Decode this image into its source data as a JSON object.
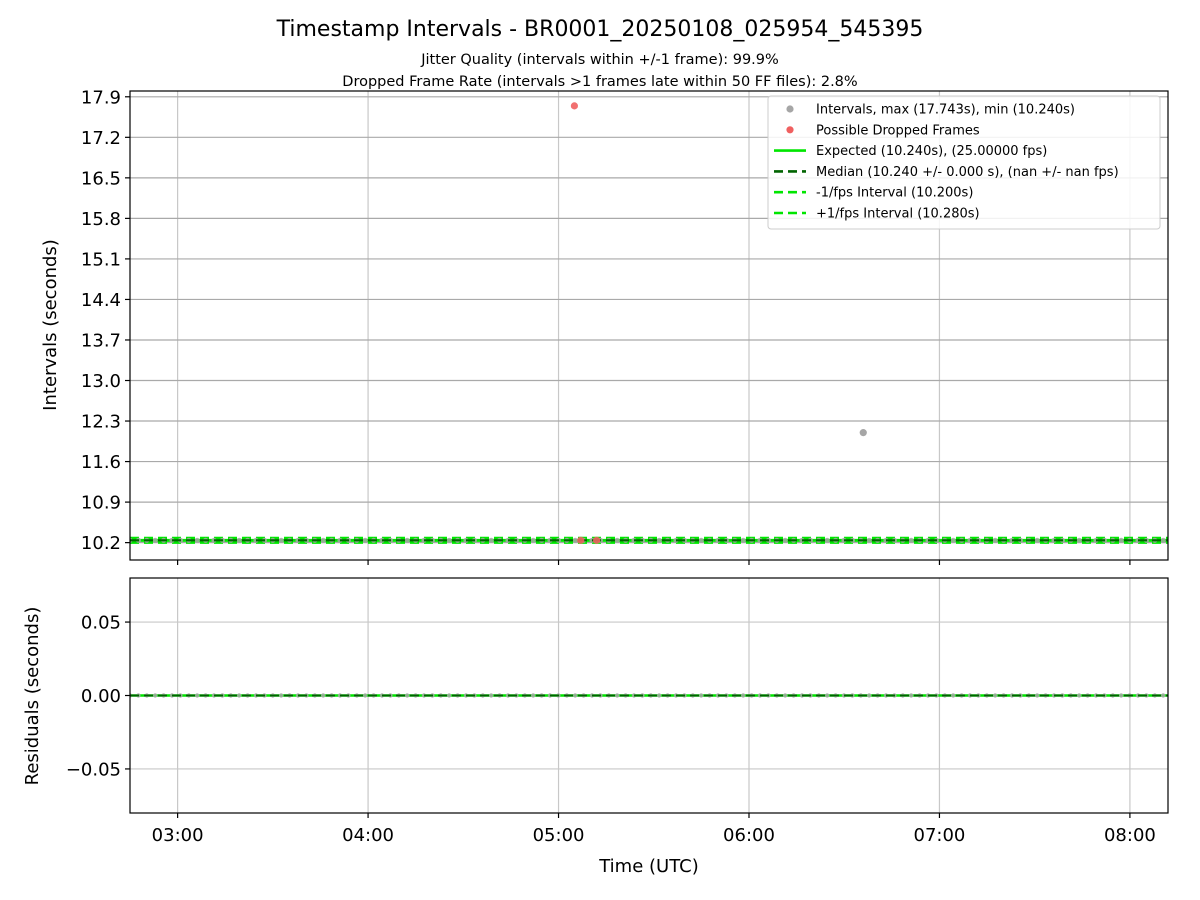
{
  "figure": {
    "title": "Timestamp Intervals - BR0001_20250108_025954_545395",
    "subtitle_lines": [
      "Jitter Quality (intervals within +/-1 frame): 99.9%",
      "Dropped Frame Rate (intervals >1 frames late within 50 FF files): 2.8%"
    ]
  },
  "chart_data": [
    {
      "type": "scatter",
      "panel": "intervals",
      "xlabel": "",
      "ylabel": "Intervals (seconds)",
      "xlim": [
        "02:45",
        "08:12"
      ],
      "ylim": [
        9.9,
        18.0
      ],
      "yticks": [
        "10.2",
        "10.9",
        "11.6",
        "12.3",
        "13.0",
        "13.7",
        "14.4",
        "15.1",
        "15.8",
        "16.5",
        "17.2",
        "17.9"
      ],
      "xticks": [
        "03:00",
        "04:00",
        "05:00",
        "06:00",
        "07:00",
        "08:00"
      ],
      "grid": true,
      "legend": {
        "placement": "top-right",
        "entries": [
          {
            "label": "Intervals, max (17.743s), min (10.240s)",
            "marker": "dot",
            "color": "#a6a6a6"
          },
          {
            "label": "Possible Dropped Frames",
            "marker": "dot",
            "color": "#f06060"
          },
          {
            "label": "Expected (10.240s), (25.00000 fps)",
            "marker": "line",
            "color": "#00e600"
          },
          {
            "label": "Median (10.240 +/- 0.000 s), (nan +/- nan fps)",
            "marker": "dash",
            "color": "#006400"
          },
          {
            "label": "-1/fps Interval (10.200s)",
            "marker": "dash",
            "color": "#00e600"
          },
          {
            "label": "+1/fps Interval (10.280s)",
            "marker": "dash",
            "color": "#00e600"
          }
        ]
      },
      "series": [
        {
          "name": "Intervals, max (17.743s), min (10.240s)",
          "color": "#a6a6a6",
          "x_start": "02:45",
          "x_end": "08:12",
          "step_seconds": 10.24,
          "baseline_value": 10.24,
          "outliers": [
            {
              "x": "06:36",
              "y": 12.1
            }
          ]
        },
        {
          "name": "Possible Dropped Frames",
          "color": "#f06060",
          "points": [
            {
              "x": "05:05",
              "y": 17.743
            },
            {
              "x": "05:07",
              "y": 10.24
            },
            {
              "x": "05:12",
              "y": 10.24
            }
          ]
        }
      ],
      "reference_lines": [
        {
          "name": "Expected (10.240s), (25.00000 fps)",
          "y": 10.24,
          "style": "solid",
          "color": "#00e600"
        },
        {
          "name": "Median (10.240 +/- 0.000 s), (nan +/- nan fps)",
          "y": 10.24,
          "style": "dashed",
          "color": "#006400"
        },
        {
          "name": "-1/fps Interval (10.200s)",
          "y": 10.2,
          "style": "dashed",
          "color": "#00e600"
        },
        {
          "name": "+1/fps Interval (10.280s)",
          "y": 10.28,
          "style": "dashed",
          "color": "#00e600"
        }
      ]
    },
    {
      "type": "scatter",
      "panel": "residuals",
      "xlabel": "Time (UTC)",
      "ylabel": "Residuals (seconds)",
      "xlim": [
        "02:45",
        "08:12"
      ],
      "ylim": [
        -0.08,
        0.08
      ],
      "yticks": [
        "0.05",
        "0.00",
        "−0.05"
      ],
      "ytick_values": [
        0.05,
        0.0,
        -0.05
      ],
      "xticks": [
        "03:00",
        "04:00",
        "05:00",
        "06:00",
        "07:00",
        "08:00"
      ],
      "grid": true,
      "series": [
        {
          "name": "",
          "color": "#a6a6a6",
          "constant_value": 0.0
        }
      ],
      "reference_lines": [
        {
          "y": 0.0,
          "style": "solid",
          "color": "#00e600"
        },
        {
          "y": 0.0,
          "style": "dashed",
          "color": "#006400"
        }
      ]
    }
  ]
}
